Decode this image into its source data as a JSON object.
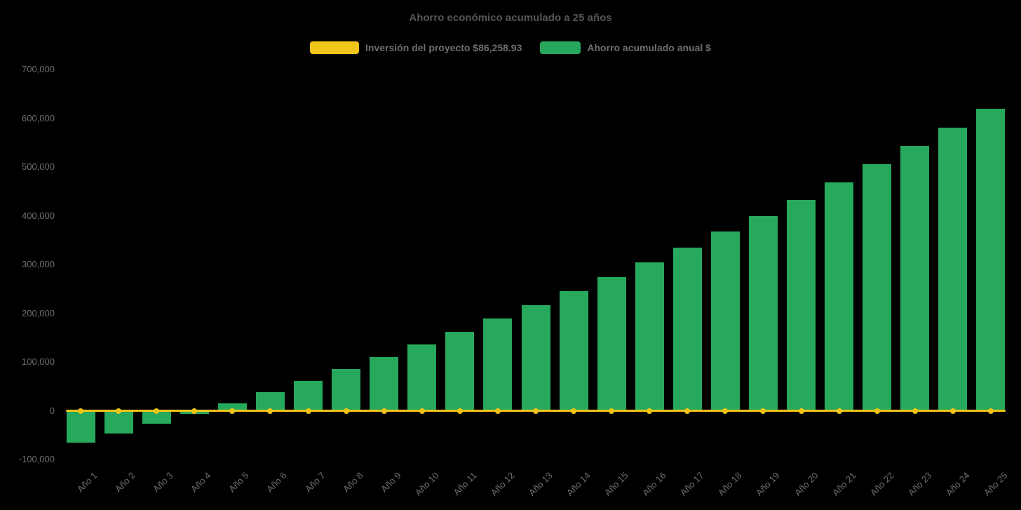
{
  "colors": {
    "background": "#000000",
    "title_text": "#555555",
    "axis_text": "#6e6e6e",
    "legend_text": "#6e6e6e",
    "bar_green": "#26a95c",
    "line_yellow": "#f0c419"
  },
  "chart_data": {
    "type": "bar",
    "title": "Ahorro económico acumulado a 25 años",
    "xlabel": "",
    "ylabel": "",
    "grid": false,
    "legend_position": "top",
    "ylim": [
      -100000,
      700000
    ],
    "yticks": [
      {
        "value": -100000,
        "label": "-100,000"
      },
      {
        "value": 0,
        "label": "0"
      },
      {
        "value": 100000,
        "label": "100,000"
      },
      {
        "value": 200000,
        "label": "200,000"
      },
      {
        "value": 300000,
        "label": "300,000"
      },
      {
        "value": 400000,
        "label": "400,000"
      },
      {
        "value": 500000,
        "label": "500,000"
      },
      {
        "value": 600000,
        "label": "600,000"
      },
      {
        "value": 700000,
        "label": "700,000"
      }
    ],
    "categories": [
      "Año 1",
      "Año 2",
      "Año 3",
      "Año 4",
      "Año 5",
      "Año 6",
      "Año 7",
      "Año 8",
      "Año 9",
      "Año 10",
      "Año 11",
      "Año 12",
      "Año 13",
      "Año 14",
      "Año 15",
      "Año 16",
      "Año 17",
      "Año 18",
      "Año 19",
      "Año 20",
      "Año 21",
      "Año 22",
      "Año 23",
      "Año 24",
      "Año 25"
    ],
    "series": [
      {
        "name": "Inversión del proyecto $86,258.93",
        "type": "line",
        "color": "#f0c419",
        "values": [
          0,
          0,
          0,
          0,
          0,
          0,
          0,
          0,
          0,
          0,
          0,
          0,
          0,
          0,
          0,
          0,
          0,
          0,
          0,
          0,
          0,
          0,
          0,
          0,
          0
        ]
      },
      {
        "name": "Ahorro acumulado anual $",
        "type": "bar",
        "color": "#26a95c",
        "values": [
          -66000,
          -47000,
          -27000,
          -6000,
          15000,
          38000,
          61000,
          85000,
          110000,
          136000,
          162000,
          189000,
          217000,
          245000,
          274000,
          304000,
          335000,
          367000,
          399000,
          433000,
          469000,
          506000,
          543000,
          581000,
          620000
        ]
      }
    ]
  }
}
